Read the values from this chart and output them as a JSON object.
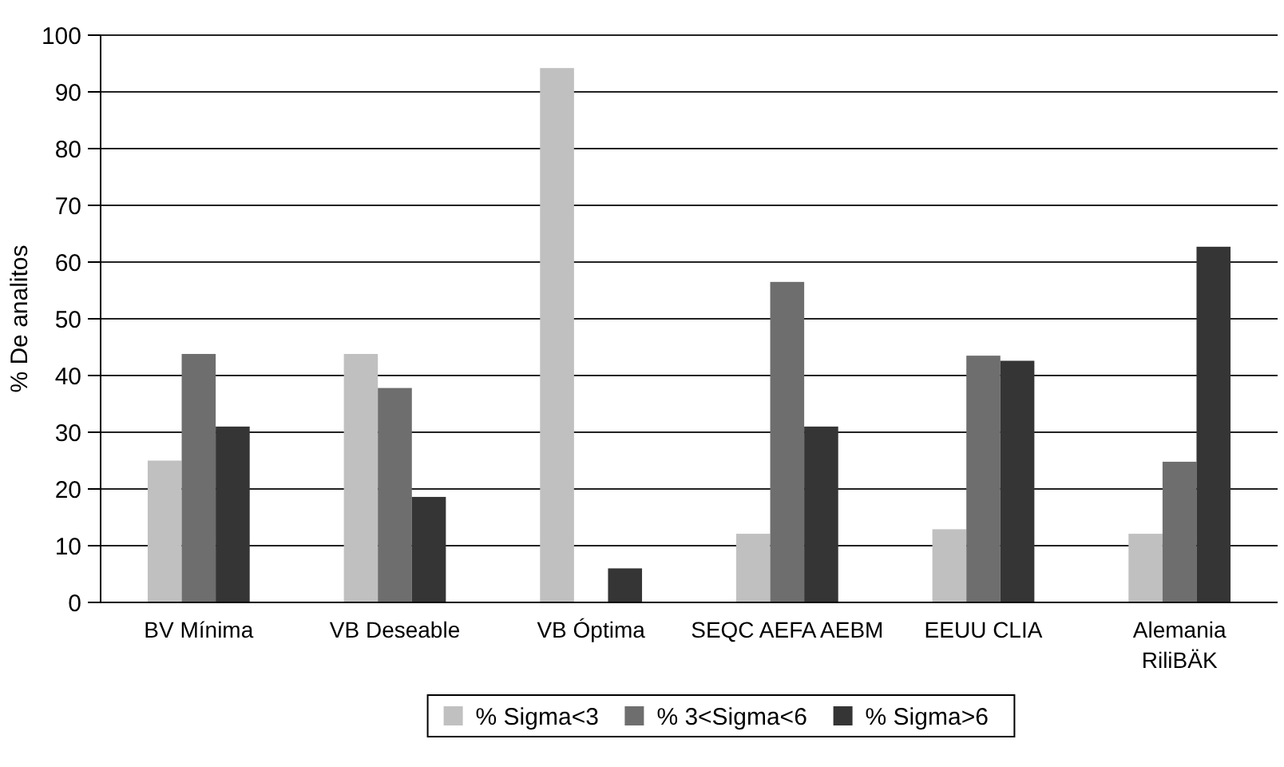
{
  "chart_data": {
    "type": "bar",
    "ylabel": "% De analitos",
    "categories": [
      "BV Mínima",
      "VB Deseable",
      "VB Óptima",
      "SEQC AEFA AEBM",
      "EEUU CLIA",
      "Alemania RiliBÄK"
    ],
    "series": [
      {
        "name": "% Sigma<3",
        "color": "#c0c0c0",
        "values": [
          25,
          43.8,
          94.2,
          12.1,
          12.9,
          12.1
        ]
      },
      {
        "name": "% 3<Sigma<6",
        "color": "#6e6e6e",
        "values": [
          43.8,
          37.8,
          null,
          56.5,
          43.5,
          24.8
        ]
      },
      {
        "name": "% Sigma>6",
        "color": "#353535",
        "values": [
          31,
          18.6,
          6,
          31,
          42.6,
          62.7
        ]
      }
    ],
    "ylim": [
      0,
      100
    ],
    "yticks": [
      0,
      10,
      20,
      30,
      40,
      50,
      60,
      70,
      80,
      90,
      100
    ],
    "grid": "y",
    "legend": "bottom"
  }
}
